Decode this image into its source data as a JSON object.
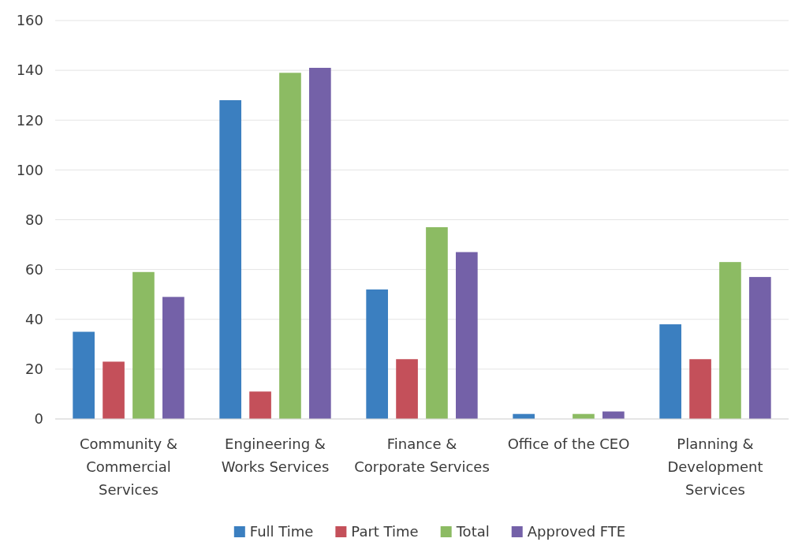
{
  "chart_data": {
    "type": "bar",
    "categories": [
      "Community & Commercial Services",
      "Engineering & Works Services",
      "Finance & Corporate Services",
      "Office of the CEO",
      "Planning & Development Services"
    ],
    "series": [
      {
        "name": "Full Time",
        "color": "#3b7fc0",
        "values": [
          35,
          128,
          52,
          2,
          38
        ]
      },
      {
        "name": "Part Time",
        "color": "#c4505a",
        "values": [
          23,
          11,
          24,
          0,
          24
        ]
      },
      {
        "name": "Total",
        "color": "#8cbb63",
        "values": [
          59,
          139,
          77,
          2,
          63
        ]
      },
      {
        "name": "Approved FTE",
        "color": "#7461a8",
        "values": [
          49,
          141,
          67,
          3,
          57
        ]
      }
    ],
    "ylim": [
      0,
      160
    ],
    "yticks": [
      0,
      20,
      40,
      60,
      80,
      100,
      120,
      140,
      160
    ],
    "grid": "y",
    "legend": "bottom"
  }
}
